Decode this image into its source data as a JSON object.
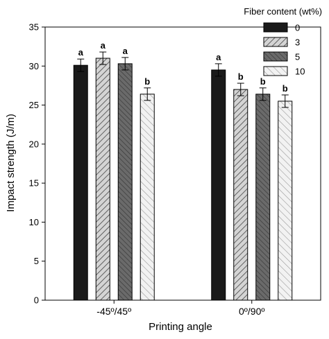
{
  "chart_data": {
    "type": "bar",
    "title": "",
    "xlabel": "Printing angle",
    "ylabel": "Impact strength (J/m)",
    "ylim": [
      0,
      35
    ],
    "yticks": [
      0,
      5,
      10,
      15,
      20,
      25,
      30,
      35
    ],
    "categories": [
      "-45º/45º",
      "0º/90º"
    ],
    "legend_title": "Fiber content (wt%)",
    "legend_position": "top-right",
    "grid": false,
    "series": [
      {
        "name": "0",
        "fill": "#1a1a1a",
        "pattern": "solid",
        "values": [
          30.1,
          29.5
        ],
        "errors": [
          0.8,
          0.8
        ],
        "labels": [
          "a",
          "a"
        ]
      },
      {
        "name": "3",
        "fill": "#d0d0d0",
        "pattern": "hatch-dark",
        "values": [
          31.0,
          27.0
        ],
        "errors": [
          0.8,
          0.8
        ],
        "labels": [
          "a",
          "b"
        ]
      },
      {
        "name": "5",
        "fill": "#606060",
        "pattern": "hatch-gray",
        "values": [
          30.3,
          26.4
        ],
        "errors": [
          0.8,
          0.8
        ],
        "labels": [
          "a",
          "b"
        ]
      },
      {
        "name": "10",
        "fill": "#ececec",
        "pattern": "hatch-light",
        "values": [
          26.4,
          25.5
        ],
        "errors": [
          0.8,
          0.8
        ],
        "labels": [
          "b",
          "b"
        ]
      }
    ]
  }
}
